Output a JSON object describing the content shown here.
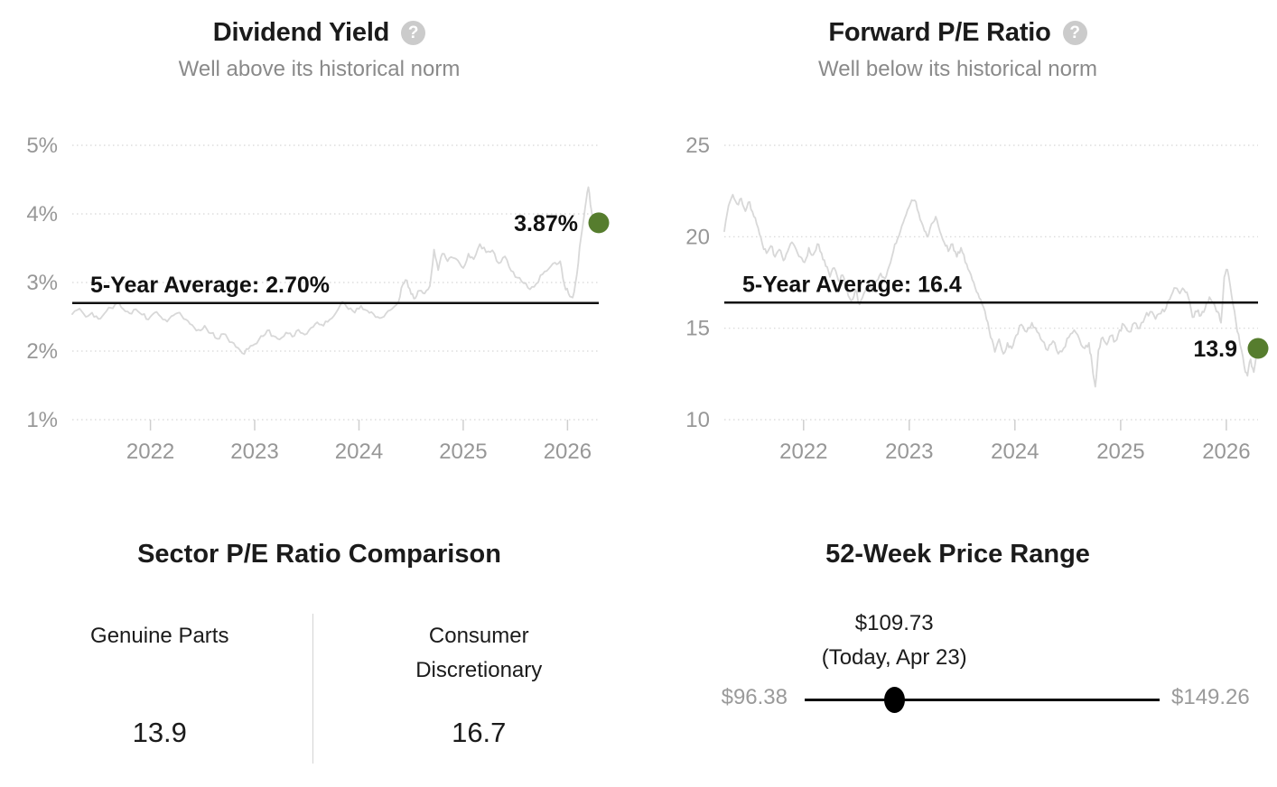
{
  "ui": {
    "help_glyph": "?"
  },
  "colors": {
    "series_line": "#d8d8d8",
    "average_line": "#111111",
    "marker_green": "#567d2e",
    "axis_text": "#979797",
    "gridline": "#d6d6d6",
    "tick": "#cfcfcf",
    "annotation_text": "#111111",
    "muted_text": "#9a9a9a",
    "slider_black": "#000000"
  },
  "chart_data": [
    {
      "id": "dividend_yield",
      "type": "line",
      "title": "Dividend Yield",
      "subtitle": "Well above its historical norm",
      "x_range": [
        2021.25,
        2026.3
      ],
      "y_range": [
        1,
        5
      ],
      "x_ticks": [
        2022,
        2023,
        2024,
        2025,
        2026
      ],
      "y_ticks": [
        {
          "v": 5,
          "label": "5%"
        },
        {
          "v": 4,
          "label": "4%"
        },
        {
          "v": 3,
          "label": "3%"
        },
        {
          "v": 2,
          "label": "2%"
        },
        {
          "v": 1,
          "label": "1%"
        }
      ],
      "grid": "dotted-horizontal",
      "legend": "none",
      "average": {
        "value": 2.7,
        "label": "5-Year Average: 2.70%"
      },
      "current": {
        "x": 2026.3,
        "value": 3.87,
        "label": "3.87%"
      },
      "series": [
        [
          2021.25,
          2.54
        ],
        [
          2021.32,
          2.62
        ],
        [
          2021.38,
          2.5
        ],
        [
          2021.44,
          2.56
        ],
        [
          2021.5,
          2.47
        ],
        [
          2021.56,
          2.55
        ],
        [
          2021.62,
          2.63
        ],
        [
          2021.68,
          2.7
        ],
        [
          2021.74,
          2.61
        ],
        [
          2021.8,
          2.55
        ],
        [
          2021.86,
          2.61
        ],
        [
          2021.92,
          2.53
        ],
        [
          2021.98,
          2.46
        ],
        [
          2022.04,
          2.56
        ],
        [
          2022.1,
          2.5
        ],
        [
          2022.16,
          2.43
        ],
        [
          2022.22,
          2.52
        ],
        [
          2022.28,
          2.56
        ],
        [
          2022.34,
          2.46
        ],
        [
          2022.4,
          2.38
        ],
        [
          2022.46,
          2.31
        ],
        [
          2022.52,
          2.37
        ],
        [
          2022.58,
          2.26
        ],
        [
          2022.64,
          2.18
        ],
        [
          2022.7,
          2.25
        ],
        [
          2022.76,
          2.13
        ],
        [
          2022.82,
          2.06
        ],
        [
          2022.88,
          1.97
        ],
        [
          2022.94,
          2.03
        ],
        [
          2023.0,
          2.1
        ],
        [
          2023.06,
          2.22
        ],
        [
          2023.12,
          2.3
        ],
        [
          2023.18,
          2.22
        ],
        [
          2023.24,
          2.17
        ],
        [
          2023.3,
          2.27
        ],
        [
          2023.36,
          2.21
        ],
        [
          2023.42,
          2.31
        ],
        [
          2023.48,
          2.24
        ],
        [
          2023.54,
          2.34
        ],
        [
          2023.6,
          2.42
        ],
        [
          2023.66,
          2.37
        ],
        [
          2023.72,
          2.46
        ],
        [
          2023.78,
          2.56
        ],
        [
          2023.84,
          2.72
        ],
        [
          2023.9,
          2.61
        ],
        [
          2023.96,
          2.56
        ],
        [
          2024.02,
          2.66
        ],
        [
          2024.08,
          2.59
        ],
        [
          2024.14,
          2.54
        ],
        [
          2024.2,
          2.48
        ],
        [
          2024.26,
          2.55
        ],
        [
          2024.32,
          2.62
        ],
        [
          2024.38,
          2.72
        ],
        [
          2024.42,
          2.97
        ],
        [
          2024.46,
          3.03
        ],
        [
          2024.5,
          2.83
        ],
        [
          2024.54,
          2.77
        ],
        [
          2024.58,
          2.88
        ],
        [
          2024.63,
          2.84
        ],
        [
          2024.68,
          2.95
        ],
        [
          2024.72,
          3.48
        ],
        [
          2024.76,
          3.18
        ],
        [
          2024.8,
          3.42
        ],
        [
          2024.85,
          3.31
        ],
        [
          2024.9,
          3.36
        ],
        [
          2024.95,
          3.32
        ],
        [
          2025.0,
          3.21
        ],
        [
          2025.05,
          3.42
        ],
        [
          2025.1,
          3.34
        ],
        [
          2025.16,
          3.56
        ],
        [
          2025.22,
          3.44
        ],
        [
          2025.28,
          3.47
        ],
        [
          2025.34,
          3.28
        ],
        [
          2025.4,
          3.38
        ],
        [
          2025.46,
          3.17
        ],
        [
          2025.52,
          3.07
        ],
        [
          2025.58,
          2.99
        ],
        [
          2025.64,
          2.9
        ],
        [
          2025.7,
          2.98
        ],
        [
          2025.76,
          3.12
        ],
        [
          2025.82,
          3.2
        ],
        [
          2025.88,
          3.29
        ],
        [
          2025.93,
          3.31
        ],
        [
          2025.97,
          2.97
        ],
        [
          2026.01,
          2.84
        ],
        [
          2026.05,
          2.78
        ],
        [
          2026.09,
          3.12
        ],
        [
          2026.13,
          3.66
        ],
        [
          2026.17,
          4.1
        ],
        [
          2026.2,
          4.39
        ],
        [
          2026.23,
          4.05
        ],
        [
          2026.26,
          3.78
        ],
        [
          2026.3,
          3.87
        ]
      ]
    },
    {
      "id": "forward_pe_ratio",
      "type": "line",
      "title": "Forward P/E Ratio",
      "subtitle": "Well below its historical norm",
      "x_range": [
        2021.25,
        2026.3
      ],
      "y_range": [
        10,
        25
      ],
      "x_ticks": [
        2022,
        2023,
        2024,
        2025,
        2026
      ],
      "y_ticks": [
        {
          "v": 25,
          "label": "25"
        },
        {
          "v": 20,
          "label": "20"
        },
        {
          "v": 15,
          "label": "15"
        },
        {
          "v": 10,
          "label": "10"
        }
      ],
      "grid": "dotted-horizontal",
      "legend": "none",
      "average": {
        "value": 16.4,
        "label": "5-Year Average: 16.4"
      },
      "current": {
        "x": 2026.3,
        "value": 13.9,
        "label": "13.9"
      },
      "series": [
        [
          2021.25,
          20.3
        ],
        [
          2021.29,
          21.7
        ],
        [
          2021.33,
          22.3
        ],
        [
          2021.37,
          21.8
        ],
        [
          2021.41,
          22.1
        ],
        [
          2021.45,
          21.4
        ],
        [
          2021.49,
          21.9
        ],
        [
          2021.53,
          21.1
        ],
        [
          2021.57,
          20.5
        ],
        [
          2021.61,
          19.6
        ],
        [
          2021.65,
          19.1
        ],
        [
          2021.69,
          19.5
        ],
        [
          2021.73,
          18.9
        ],
        [
          2021.77,
          19.3
        ],
        [
          2021.81,
          18.7
        ],
        [
          2021.85,
          19.2
        ],
        [
          2021.89,
          19.7
        ],
        [
          2021.93,
          19.3
        ],
        [
          2021.97,
          18.9
        ],
        [
          2022.01,
          18.6
        ],
        [
          2022.05,
          19.4
        ],
        [
          2022.09,
          19.0
        ],
        [
          2022.13,
          19.6
        ],
        [
          2022.17,
          19.1
        ],
        [
          2022.21,
          18.4
        ],
        [
          2022.25,
          17.8
        ],
        [
          2022.29,
          18.3
        ],
        [
          2022.33,
          17.6
        ],
        [
          2022.37,
          17.9
        ],
        [
          2022.41,
          17.1
        ],
        [
          2022.45,
          16.5
        ],
        [
          2022.49,
          17.1
        ],
        [
          2022.53,
          16.3
        ],
        [
          2022.57,
          16.9
        ],
        [
          2022.61,
          17.4
        ],
        [
          2022.65,
          17.0
        ],
        [
          2022.69,
          17.6
        ],
        [
          2022.73,
          18.0
        ],
        [
          2022.77,
          17.7
        ],
        [
          2022.81,
          18.4
        ],
        [
          2022.85,
          19.2
        ],
        [
          2022.89,
          19.9
        ],
        [
          2022.93,
          20.6
        ],
        [
          2022.97,
          21.2
        ],
        [
          2023.01,
          21.8
        ],
        [
          2023.05,
          22.0
        ],
        [
          2023.09,
          21.3
        ],
        [
          2023.13,
          20.6
        ],
        [
          2023.17,
          20.0
        ],
        [
          2023.21,
          20.7
        ],
        [
          2023.25,
          21.1
        ],
        [
          2023.29,
          20.3
        ],
        [
          2023.33,
          19.7
        ],
        [
          2023.37,
          19.2
        ],
        [
          2023.41,
          19.6
        ],
        [
          2023.45,
          18.9
        ],
        [
          2023.49,
          19.4
        ],
        [
          2023.53,
          18.6
        ],
        [
          2023.57,
          18.1
        ],
        [
          2023.61,
          17.5
        ],
        [
          2023.65,
          16.9
        ],
        [
          2023.69,
          16.3
        ],
        [
          2023.73,
          15.5
        ],
        [
          2023.77,
          14.5
        ],
        [
          2023.81,
          13.7
        ],
        [
          2023.85,
          14.4
        ],
        [
          2023.89,
          13.6
        ],
        [
          2023.93,
          14.2
        ],
        [
          2023.97,
          13.9
        ],
        [
          2024.01,
          14.6
        ],
        [
          2024.06,
          15.2
        ],
        [
          2024.11,
          14.8
        ],
        [
          2024.16,
          15.3
        ],
        [
          2024.21,
          14.8
        ],
        [
          2024.26,
          14.3
        ],
        [
          2024.31,
          13.8
        ],
        [
          2024.36,
          14.3
        ],
        [
          2024.41,
          13.6
        ],
        [
          2024.46,
          13.9
        ],
        [
          2024.51,
          14.5
        ],
        [
          2024.56,
          14.9
        ],
        [
          2024.61,
          14.4
        ],
        [
          2024.66,
          13.9
        ],
        [
          2024.7,
          14.2
        ],
        [
          2024.73,
          13.0
        ],
        [
          2024.76,
          11.8
        ],
        [
          2024.79,
          13.8
        ],
        [
          2024.83,
          14.5
        ],
        [
          2024.87,
          14.1
        ],
        [
          2024.91,
          14.6
        ],
        [
          2024.95,
          14.3
        ],
        [
          2024.99,
          14.9
        ],
        [
          2025.03,
          15.2
        ],
        [
          2025.08,
          14.8
        ],
        [
          2025.13,
          15.3
        ],
        [
          2025.18,
          15.0
        ],
        [
          2025.23,
          15.6
        ],
        [
          2025.28,
          15.9
        ],
        [
          2025.33,
          15.5
        ],
        [
          2025.38,
          15.8
        ],
        [
          2025.43,
          16.1
        ],
        [
          2025.48,
          16.8
        ],
        [
          2025.52,
          17.2
        ],
        [
          2025.56,
          16.9
        ],
        [
          2025.6,
          17.1
        ],
        [
          2025.64,
          16.7
        ],
        [
          2025.68,
          15.6
        ],
        [
          2025.72,
          15.9
        ],
        [
          2025.76,
          15.7
        ],
        [
          2025.8,
          16.1
        ],
        [
          2025.84,
          16.7
        ],
        [
          2025.88,
          16.4
        ],
        [
          2025.92,
          15.9
        ],
        [
          2025.95,
          15.3
        ],
        [
          2025.98,
          17.8
        ],
        [
          2026.01,
          18.2
        ],
        [
          2026.05,
          16.8
        ],
        [
          2026.09,
          15.4
        ],
        [
          2026.13,
          14.1
        ],
        [
          2026.17,
          12.9
        ],
        [
          2026.2,
          12.4
        ],
        [
          2026.23,
          13.3
        ],
        [
          2026.26,
          12.6
        ],
        [
          2026.3,
          13.9
        ]
      ]
    },
    {
      "id": "sector_pe_comparison",
      "type": "table",
      "title": "Sector P/E Ratio Comparison",
      "categories": [
        "Genuine Parts",
        "Consumer Discretionary"
      ],
      "values": [
        13.9,
        16.7
      ]
    },
    {
      "id": "price_range_52w",
      "type": "range",
      "title": "52-Week Price Range",
      "min": 96.38,
      "max": 149.26,
      "current": 109.73,
      "min_label": "$96.38",
      "max_label": "$149.26",
      "current_label": "$109.73",
      "date_label": "(Today, Apr 23)"
    }
  ]
}
